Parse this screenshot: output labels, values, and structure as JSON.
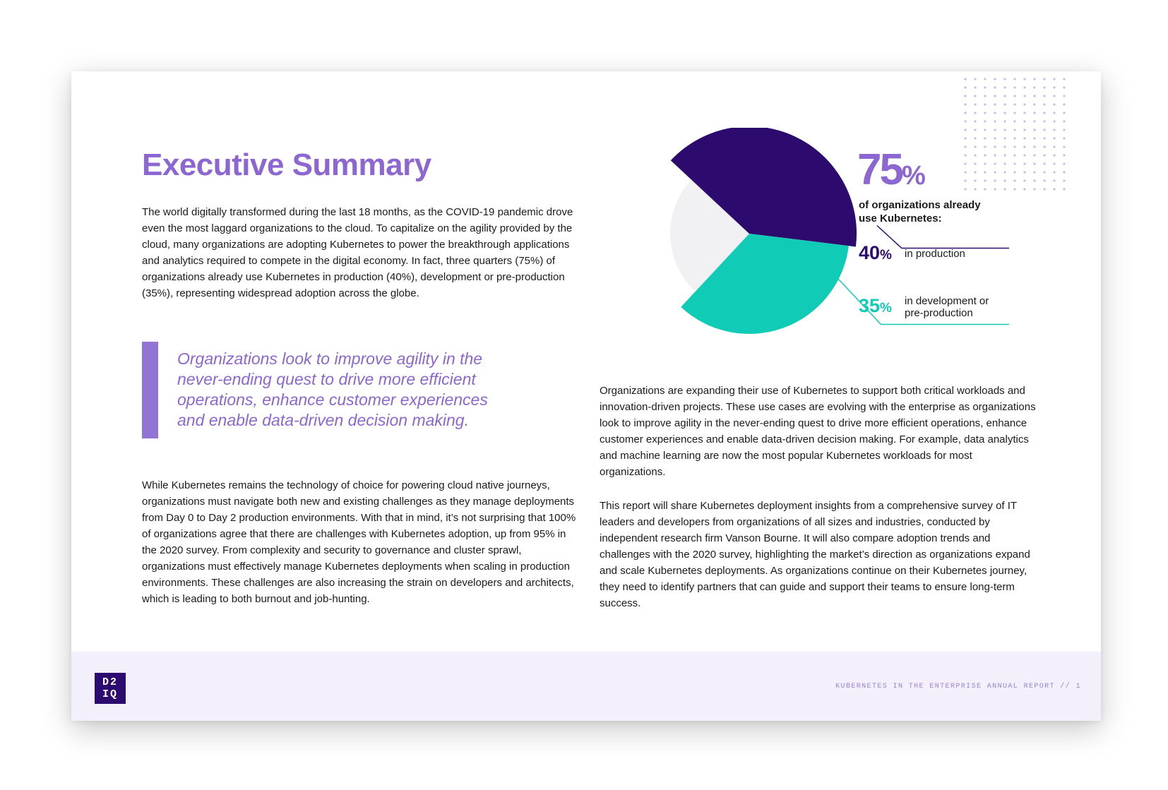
{
  "page": {
    "title": "Executive Summary",
    "paragraph_1": "The world digitally transformed during the last 18 months, as the COVID-19 pandemic drove even the most laggard organizations to the cloud. To capitalize on the agility provided by the cloud, many organizations are adopting Kubernetes to power the breakthrough applications and analytics required to compete in the digital economy. In fact, three quarters (75%) of organizations already use Kubernetes in production (40%), development or pre-production (35%), representing widespread adoption across the globe.",
    "pull_quote": "Organizations look to improve agility in the never-ending quest to drive more efficient operations, enhance customer experiences and enable data-driven decision making.",
    "paragraph_2": "While Kubernetes remains the technology of choice for powering cloud native journeys, organizations must navigate both new and existing challenges as they manage deployments from Day 0 to Day 2 production environments. With that in mind, it’s not surprising that 100% of organizations agree that there are challenges with Kubernetes adoption, up from 95% in the 2020 survey. From complexity and security to governance and cluster sprawl, organizations must effectively manage Kubernetes deployments when scaling in production environments. These challenges are also increasing the strain on developers and architects, which is leading to both burnout and job-hunting.",
    "paragraph_3": "Organizations are expanding their use of Kubernetes to support both critical workloads and innovation-driven projects. These use cases are evolving with the enterprise as organizations look to improve agility in the never-ending quest to drive more efficient operations, enhance customer experiences and enable data-driven decision making. For example, data analytics and machine learning are now the most popular Kubernetes workloads for most organizations.",
    "paragraph_4": "This report will share Kubernetes deployment insights from a comprehensive survey of IT leaders and developers from organizations of all sizes and industries, conducted by independent research firm Vanson Bourne. It will also compare adoption trends and challenges with the 2020 survey, highlighting the market’s direction as organizations expand and scale Kubernetes deployments. As organizations continue on their Kubernetes journey, they need to identify partners that can guide and support their teams to ensure long-term success."
  },
  "stats": {
    "total_number": "75",
    "total_sign": "%",
    "total_caption": "of organizations already use Kubernetes:",
    "production_number": "40",
    "production_sign": "%",
    "production_label": "in production",
    "development_number": "35",
    "development_sign": "%",
    "development_label": "in development or pre-production"
  },
  "chart_data": {
    "type": "pie",
    "categories": [
      "in production",
      "in development or pre-production",
      "other"
    ],
    "values": [
      40,
      35,
      25
    ],
    "colors": [
      "#2d0b6e",
      "#10ccb6",
      "#f1f1f3"
    ]
  },
  "footer": {
    "logo_line_1": "D2",
    "logo_line_2": "IQ",
    "report_name": "KUBERNETES IN THE ENTERPRISE ANNUAL REPORT // 1"
  }
}
